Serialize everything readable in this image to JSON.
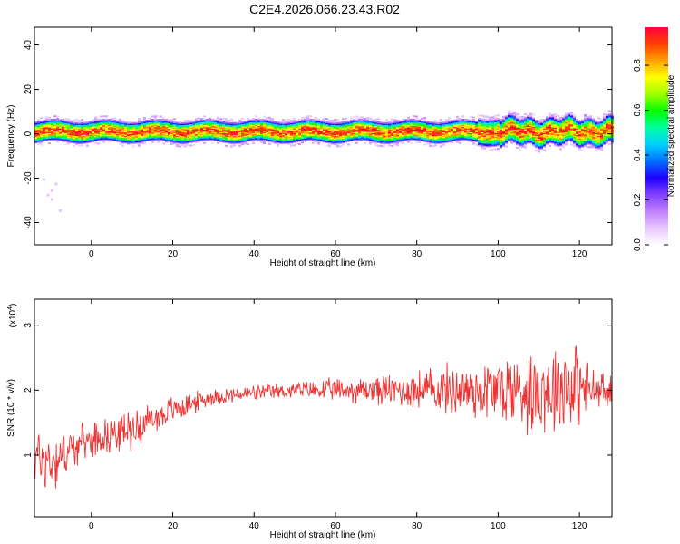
{
  "figure": {
    "title": "C2E4.2026.066.23.43.R02"
  },
  "chart_data": [
    {
      "type": "heatmap",
      "xlabel": "Height of straight line (km)",
      "ylabel": "Frequency (Hz)",
      "xlim": [
        -14,
        128
      ],
      "ylim": [
        -50,
        48
      ],
      "xticks": [
        0,
        20,
        40,
        60,
        80,
        100,
        120
      ],
      "yticks": [
        -40,
        -20,
        0,
        20,
        40
      ],
      "colorbar": {
        "label": "Normalized spectral amplitude",
        "range": [
          0,
          0.97
        ],
        "ticks": [
          0.0,
          0.2,
          0.4,
          0.6,
          0.8
        ],
        "colors": [
          "#ffffff",
          "#e8c8ff",
          "#c080ff",
          "#8040ff",
          "#2000ff",
          "#0070ff",
          "#00d0ff",
          "#00ffa0",
          "#00ff00",
          "#a0ff00",
          "#ffff00",
          "#ffa000",
          "#ff4000",
          "#ff0040"
        ]
      },
      "band": {
        "center_hz": 1.5,
        "halfwidth_hz": 2.5,
        "halo_halfwidth_hz": 5
      }
    },
    {
      "type": "line",
      "xlabel": "Height of straight line (km)",
      "ylabel": "SNR (10 * v/v)",
      "yscale_label": "(x10",
      "yscale_exp": "4",
      "yscale_close": ")",
      "xlim": [
        -14,
        128
      ],
      "ylim": [
        0.05,
        3.4
      ],
      "xticks": [
        0,
        20,
        40,
        60,
        80,
        100,
        120
      ],
      "yticks": [
        1,
        2,
        3
      ],
      "color": "#ee3333",
      "envelope": [
        {
          "x": -14,
          "mean": 1.0,
          "amp": 0.6
        },
        {
          "x": -10,
          "mean": 0.9,
          "amp": 0.6
        },
        {
          "x": -5,
          "mean": 1.1,
          "amp": 0.35
        },
        {
          "x": 0,
          "mean": 1.25,
          "amp": 0.3
        },
        {
          "x": 10,
          "mean": 1.4,
          "amp": 0.35
        },
        {
          "x": 20,
          "mean": 1.7,
          "amp": 0.25
        },
        {
          "x": 30,
          "mean": 1.9,
          "amp": 0.15
        },
        {
          "x": 50,
          "mean": 2.0,
          "amp": 0.15
        },
        {
          "x": 75,
          "mean": 2.0,
          "amp": 0.3
        },
        {
          "x": 90,
          "mean": 2.0,
          "amp": 0.5
        },
        {
          "x": 110,
          "mean": 2.0,
          "amp": 0.8
        },
        {
          "x": 118,
          "mean": 2.1,
          "amp": 0.9
        },
        {
          "x": 122,
          "mean": 2.0,
          "amp": 0.5
        },
        {
          "x": 128,
          "mean": 1.95,
          "amp": 0.3
        }
      ]
    }
  ]
}
